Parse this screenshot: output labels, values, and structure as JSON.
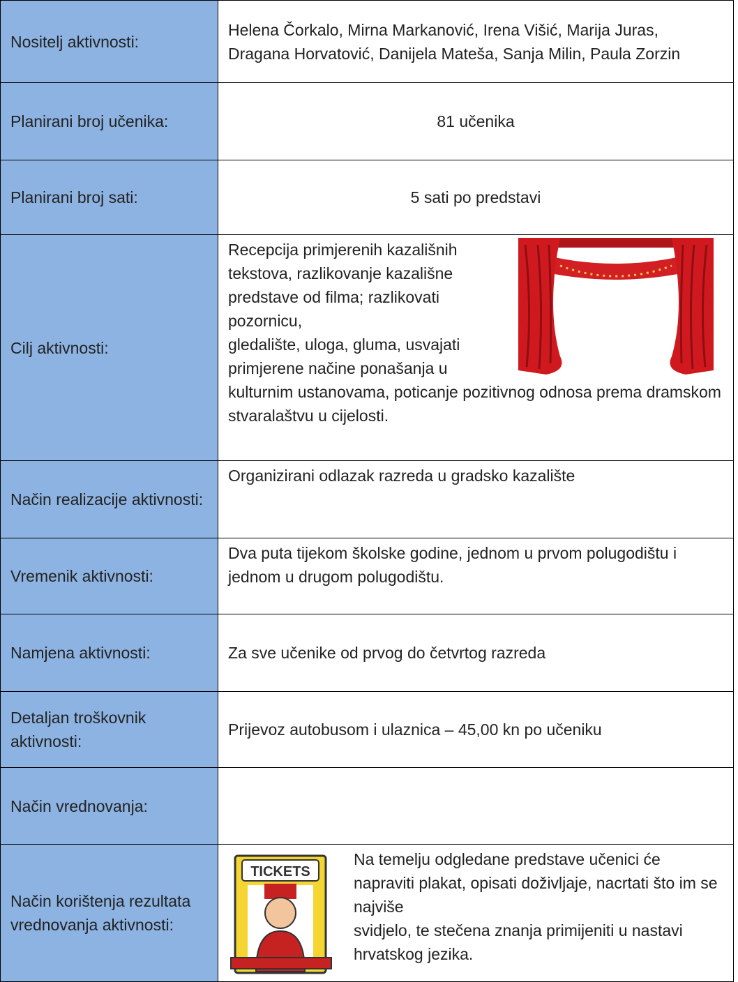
{
  "table": {
    "rows": [
      {
        "label": "Nositelj aktivnosti:",
        "content": "Helena Čorkalo, Mirna Markanović, Irena Višić, Marija Juras, Dragana Horvatović, Danijela Mateša, Sanja Milin, Paula Zorzin"
      },
      {
        "label": "Planirani broj učenika:",
        "content": "81 učenika"
      },
      {
        "label": "Planirani broj sati:",
        "content": "5 sati po predstavi"
      },
      {
        "label": "Cilj aktivnosti:",
        "content": [
          "Recepcija primjerenih kazališnih tekstova, razlikovanje kazališne predstave od filma; razlikovati pozornicu,",
          "gledalište, uloga, gluma, usvajati primjerene načine ponašanja u kulturnim ustanovama, poticanje pozitivnog odnosa prema dramskom stvaralaštvu u cijelosti."
        ]
      },
      {
        "label": "Način realizacije aktivnosti:",
        "content": "Organizirani odlazak razreda u gradsko kazalište"
      },
      {
        "label": "Vremenik aktivnosti:",
        "content": "Dva puta tijekom školske godine, jednom u prvom polugodištu i jednom u drugom polugodištu."
      },
      {
        "label": "Namjena aktivnosti:",
        "content": "Za sve učenike od prvog do četvrtog razreda"
      },
      {
        "label": "Detaljan troškovnik aktivnosti:",
        "content": "Prijevoz autobusom i ulaznica – 45,00 kn po učeniku"
      },
      {
        "label": "Način vrednovanja:",
        "content": ""
      },
      {
        "label": "Način korištenja rezultata vrednovanja aktivnosti:",
        "content": [
          "Na temelju odgledane predstave učenici će napraviti plakat, opisati doživljaje, nacrtati što im se najviše",
          "svidjelo, te stečena znanja primijeniti u nastavi hrvatskog jezika."
        ],
        "image_text": "TICKETS"
      }
    ]
  }
}
